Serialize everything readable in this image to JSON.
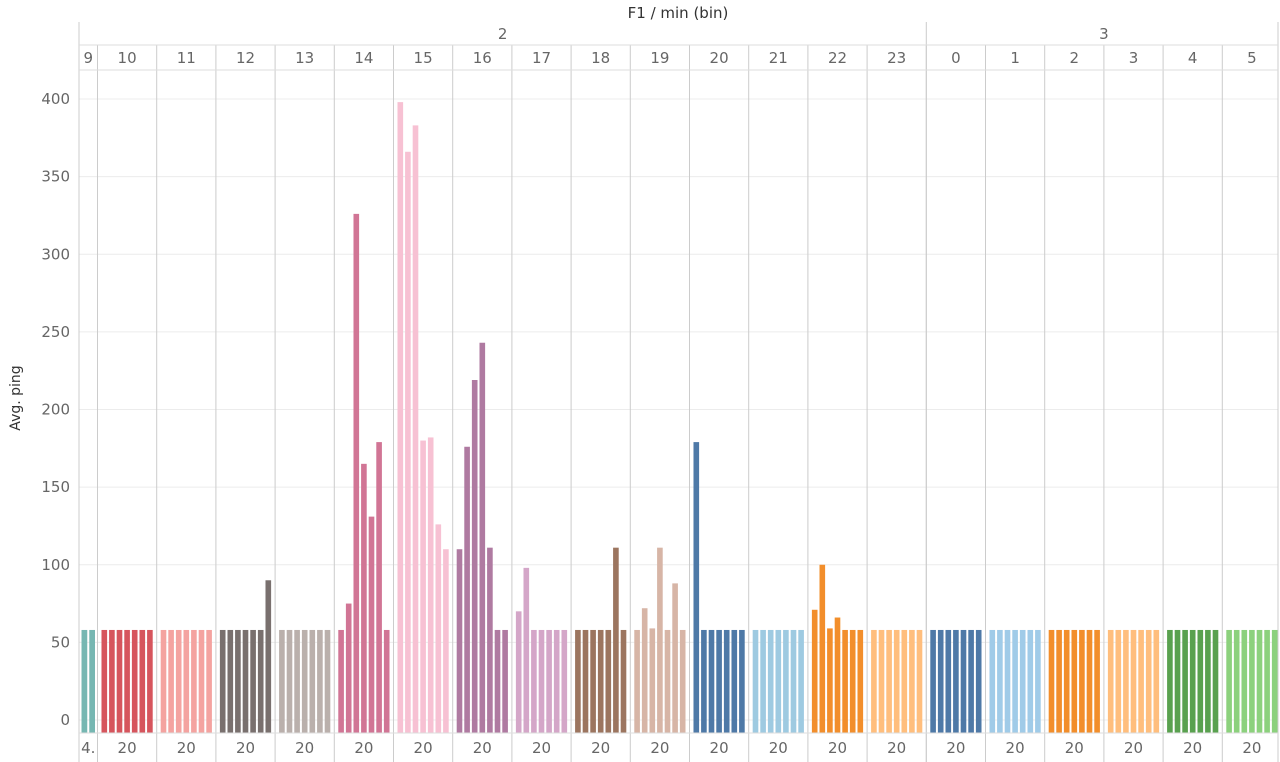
{
  "chart_data": {
    "type": "bar",
    "title": "F1 / min (bin)",
    "xlabel": "F1 / min (bin)",
    "ylabel": "Avg. ping",
    "ylim": [
      0,
      420
    ],
    "yticks": [
      0,
      50,
      100,
      150,
      200,
      250,
      300,
      350,
      400
    ],
    "gridlines": true,
    "top_groups": [
      {
        "label": "2",
        "first_panel": 0,
        "last_panel": 14
      },
      {
        "label": "3",
        "first_panel": 15,
        "last_panel": 20
      }
    ],
    "panels": [
      {
        "label": "9",
        "footer": "4.",
        "color": "#76b7b2",
        "values": [
          58,
          58
        ]
      },
      {
        "label": "10",
        "footer": "20",
        "color": "#d6555d",
        "values": [
          58,
          58,
          58,
          58,
          58,
          58,
          58
        ]
      },
      {
        "label": "11",
        "footer": "20",
        "color": "#f4a3a0",
        "values": [
          58,
          58,
          58,
          58,
          58,
          58,
          58
        ]
      },
      {
        "label": "12",
        "footer": "20",
        "color": "#79706e",
        "values": [
          58,
          58,
          58,
          58,
          58,
          58,
          90
        ]
      },
      {
        "label": "13",
        "footer": "20",
        "color": "#bab0ac",
        "values": [
          58,
          58,
          58,
          58,
          58,
          58,
          58
        ]
      },
      {
        "label": "14",
        "footer": "20",
        "color": "#d17595",
        "values": [
          58,
          75,
          326,
          165,
          131,
          179,
          58
        ]
      },
      {
        "label": "15",
        "footer": "20",
        "color": "#f7c1d3",
        "values": [
          398,
          366,
          383,
          180,
          182,
          126,
          110
        ]
      },
      {
        "label": "16",
        "footer": "20",
        "color": "#af7aa1",
        "values": [
          110,
          176,
          219,
          243,
          111,
          58,
          58
        ]
      },
      {
        "label": "17",
        "footer": "20",
        "color": "#d4a6c8",
        "values": [
          70,
          98,
          58,
          58,
          58,
          58,
          58
        ]
      },
      {
        "label": "18",
        "footer": "20",
        "color": "#9c755f",
        "values": [
          58,
          58,
          58,
          58,
          58,
          111,
          58
        ]
      },
      {
        "label": "19",
        "footer": "20",
        "color": "#d7b5a6",
        "values": [
          58,
          72,
          59,
          111,
          58,
          88,
          58
        ]
      },
      {
        "label": "20",
        "footer": "20",
        "color": "#4e79a7",
        "values": [
          179,
          58,
          58,
          58,
          58,
          58,
          58
        ]
      },
      {
        "label": "21",
        "footer": "20",
        "color": "#9ecae1",
        "values": [
          58,
          58,
          58,
          58,
          58,
          58,
          58
        ]
      },
      {
        "label": "22",
        "footer": "20",
        "color": "#f28e2b",
        "values": [
          71,
          100,
          59,
          66,
          58,
          58,
          58
        ]
      },
      {
        "label": "23",
        "footer": "20",
        "color": "#ffbe7d",
        "values": [
          58,
          58,
          58,
          58,
          58,
          58,
          58
        ]
      },
      {
        "label": "0",
        "footer": "20",
        "color": "#4e79a7",
        "values": [
          58,
          58,
          58,
          58,
          58,
          58,
          58
        ]
      },
      {
        "label": "1",
        "footer": "20",
        "color": "#a0cbe8",
        "values": [
          58,
          58,
          58,
          58,
          58,
          58,
          58
        ]
      },
      {
        "label": "2",
        "footer": "20",
        "color": "#f28e2b",
        "values": [
          58,
          58,
          58,
          58,
          58,
          58,
          58
        ]
      },
      {
        "label": "3",
        "footer": "20",
        "color": "#ffbe7d",
        "values": [
          58,
          58,
          58,
          58,
          58,
          58,
          58
        ]
      },
      {
        "label": "4",
        "footer": "20",
        "color": "#59a14f",
        "values": [
          58,
          58,
          58,
          58,
          58,
          58,
          58
        ]
      },
      {
        "label": "5",
        "footer": "20",
        "color": "#8cd17d",
        "values": [
          58,
          58,
          58,
          58,
          58,
          58,
          58
        ]
      }
    ]
  }
}
